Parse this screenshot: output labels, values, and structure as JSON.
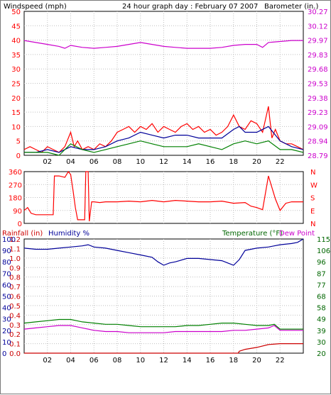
{
  "header": {
    "title": "24 hour graph day : February 07 2007",
    "left_label": "Windspeed (mph)",
    "right_label": "Barometer (in.)"
  },
  "colors": {
    "wind": "#ff0000",
    "gust": "#000099",
    "avg": "#008000",
    "baro": "#cc00cc",
    "grid": "#c0c0c0",
    "frame": "#000000",
    "humidity": "#000099",
    "rain": "#cc0000",
    "temp": "#008000",
    "dew": "#cc00cc",
    "temp_axis": "#006600"
  },
  "chart_data": [
    {
      "type": "line",
      "name": "wind-barometer",
      "x_ticks": [
        "02",
        "04",
        "06",
        "08",
        "10",
        "12",
        "14",
        "16",
        "18",
        "20",
        "22"
      ],
      "xlim_hours": [
        0,
        24
      ],
      "y_left": {
        "label": "Windspeed (mph)",
        "ticks": [
          "50",
          "45",
          "40",
          "35",
          "30",
          "25",
          "20",
          "15",
          "10",
          "5",
          "0"
        ],
        "ylim": [
          0,
          50
        ]
      },
      "y_right": {
        "label": "Barometer (in.)",
        "ticks": [
          "30.27",
          "30.12",
          "29.97",
          "29.83",
          "29.68",
          "29.53",
          "29.38",
          "29.23",
          "29.09",
          "28.94",
          "28.79"
        ],
        "ylim": [
          28.79,
          30.27
        ]
      },
      "series": [
        {
          "key": "baro",
          "axis": "right",
          "x": [
            0,
            1,
            2,
            3,
            3.5,
            4,
            5,
            6,
            7,
            8,
            9,
            10,
            11,
            12,
            13,
            14,
            15,
            16,
            17,
            18,
            19,
            20,
            20.5,
            21,
            22,
            23,
            24
          ],
          "y": [
            29.97,
            29.95,
            29.93,
            29.91,
            29.89,
            29.92,
            29.9,
            29.89,
            29.9,
            29.91,
            29.93,
            29.95,
            29.93,
            29.91,
            29.9,
            29.89,
            29.89,
            29.89,
            29.9,
            29.92,
            29.93,
            29.93,
            29.9,
            29.95,
            29.96,
            29.97,
            29.97
          ]
        },
        {
          "key": "wind",
          "axis": "left",
          "x": [
            0,
            0.5,
            1,
            1.5,
            2,
            2.5,
            3,
            3.5,
            4,
            4.3,
            4.6,
            5,
            5.5,
            6,
            6.5,
            7,
            7.5,
            8,
            8.5,
            9,
            9.5,
            10,
            10.5,
            11,
            11.5,
            12,
            12.5,
            13,
            13.5,
            14,
            14.5,
            15,
            15.5,
            16,
            16.5,
            17,
            17.5,
            18,
            18.5,
            19,
            19.5,
            20,
            20.5,
            21,
            21.3,
            21.6,
            22,
            22.5,
            23,
            23.5,
            24
          ],
          "y": [
            2,
            3,
            2,
            1,
            3,
            2,
            1,
            3,
            8,
            3,
            5,
            2,
            3,
            2,
            4,
            3,
            5,
            8,
            9,
            10,
            8,
            10,
            9,
            11,
            8,
            10,
            9,
            8,
            10,
            11,
            9,
            10,
            8,
            9,
            7,
            8,
            10,
            14,
            10,
            9,
            12,
            11,
            8,
            17,
            6,
            9,
            5,
            4,
            4,
            3,
            2
          ]
        },
        {
          "key": "gust",
          "axis": "left",
          "x": [
            0,
            1,
            2,
            3,
            4,
            5,
            6,
            7,
            8,
            9,
            10,
            11,
            12,
            13,
            14,
            15,
            16,
            17,
            18,
            18.5,
            19,
            20,
            21,
            22,
            23,
            24
          ],
          "y": [
            1,
            1,
            2,
            1,
            3,
            2,
            2,
            3,
            5,
            6,
            8,
            7,
            6,
            7,
            7,
            6,
            6,
            6,
            9,
            10,
            8,
            8,
            10,
            5,
            3,
            2
          ]
        },
        {
          "key": "avg",
          "axis": "left",
          "x": [
            0,
            1,
            2,
            3,
            4,
            5,
            6,
            7,
            8,
            9,
            10,
            11,
            12,
            13,
            14,
            15,
            16,
            17,
            18,
            19,
            20,
            21,
            22,
            23,
            24
          ],
          "y": [
            1,
            1,
            1,
            0,
            4,
            2,
            1,
            2,
            3,
            4,
            5,
            4,
            3,
            3,
            3,
            4,
            3,
            2,
            4,
            5,
            4,
            5,
            2,
            2,
            1
          ]
        }
      ]
    },
    {
      "type": "line",
      "name": "wind-direction",
      "xlim_hours": [
        0,
        24
      ],
      "y_left": {
        "ticks": [
          "360",
          "270",
          "180",
          "90",
          "0"
        ],
        "ylim": [
          0,
          360
        ]
      },
      "y_right": {
        "ticks": [
          "N",
          "W",
          "S",
          "E",
          "N"
        ]
      },
      "series": [
        {
          "key": "wind",
          "axis": "left",
          "x": [
            0,
            0.3,
            0.6,
            1,
            1.5,
            2,
            2.5,
            2.6,
            3,
            3.5,
            3.8,
            4,
            4.2,
            4.4,
            4.6,
            4.8,
            5,
            5.2,
            5.3,
            5.5,
            5.6,
            5.8,
            6,
            6.5,
            7,
            8,
            9,
            10,
            11,
            12,
            13,
            14,
            15,
            16,
            17,
            18,
            19,
            19.5,
            20,
            20.5,
            21,
            21.3,
            21.6,
            22,
            22.5,
            23,
            24
          ],
          "y": [
            90,
            110,
            70,
            60,
            60,
            60,
            60,
            330,
            330,
            320,
            360,
            340,
            230,
            110,
            25,
            25,
            25,
            25,
            360,
            360,
            15,
            150,
            150,
            145,
            150,
            150,
            155,
            150,
            160,
            150,
            160,
            155,
            150,
            150,
            155,
            140,
            145,
            120,
            110,
            95,
            330,
            250,
            170,
            90,
            140,
            150,
            150
          ]
        }
      ]
    },
    {
      "type": "line",
      "name": "rain-humidity-temperature",
      "x_ticks": [
        "02",
        "04",
        "06",
        "08",
        "10",
        "12",
        "14",
        "16",
        "18",
        "20",
        "22"
      ],
      "xlim_hours": [
        0,
        24
      ],
      "labels": {
        "rain": "Rainfall (in)",
        "humidity": "Humidity %",
        "temperature": "Temperature (°F)",
        "dew": "Dew Point"
      },
      "y_rain": {
        "ticks": [
          "1.2",
          "1.1",
          "1.0",
          "0.9",
          "0.8",
          "0.7",
          "0.6",
          "0.5",
          "0.4",
          "0.3",
          "0.2",
          "0.1",
          "0.0"
        ],
        "ylim": [
          0,
          1.2
        ]
      },
      "y_humidity": {
        "ticks": [
          "100",
          "90",
          "80",
          "70",
          "60",
          "50",
          "40",
          "30",
          "20",
          "10",
          "0"
        ],
        "ylim": [
          0,
          100
        ]
      },
      "y_temp": {
        "ticks": [
          "115",
          "106",
          "96",
          "87",
          "77",
          "68",
          "58",
          "49",
          "39",
          "30",
          "20"
        ],
        "ylim": [
          20,
          115
        ]
      },
      "series": [
        {
          "key": "humidity",
          "axis": "humidity",
          "x": [
            0,
            1,
            2,
            3,
            4,
            5,
            5.5,
            6,
            7,
            8,
            9,
            10,
            11,
            11.5,
            12,
            12.5,
            13,
            14,
            15,
            16,
            17,
            17.5,
            18,
            18.5,
            19,
            20,
            21,
            22,
            23,
            23.5,
            24
          ],
          "y": [
            92,
            91,
            91,
            92,
            93,
            94,
            95,
            93,
            92,
            90,
            88,
            86,
            84,
            80,
            77,
            79,
            80,
            83,
            83,
            82,
            81,
            79,
            77,
            82,
            90,
            92,
            93,
            95,
            96,
            97,
            100
          ]
        },
        {
          "key": "temp",
          "axis": "temp",
          "x": [
            0,
            1,
            2,
            3,
            4,
            4.5,
            5,
            6,
            7,
            8,
            9,
            10,
            11,
            12,
            13,
            14,
            15,
            16,
            17,
            18,
            19,
            20,
            21,
            21.5,
            22,
            23,
            24
          ],
          "y": [
            45,
            46,
            47,
            48,
            48,
            47,
            46,
            45,
            44,
            44,
            43,
            42,
            42,
            42,
            42,
            43,
            43,
            44,
            45,
            45,
            44,
            43,
            43,
            44,
            40,
            40,
            40
          ]
        },
        {
          "key": "dew",
          "axis": "temp",
          "x": [
            0,
            1,
            2,
            3,
            4,
            4.5,
            5,
            6,
            7,
            8,
            9,
            10,
            11,
            12,
            13,
            14,
            15,
            16,
            17,
            18,
            19,
            20,
            21,
            21.5,
            22,
            23,
            24
          ],
          "y": [
            40,
            41,
            42,
            43,
            43,
            42,
            41,
            39,
            38,
            38,
            37,
            37,
            37,
            37,
            38,
            38,
            38,
            38,
            38,
            39,
            39,
            40,
            41,
            43,
            39,
            39,
            39
          ]
        },
        {
          "key": "rain",
          "axis": "rain",
          "x": [
            0,
            18.4,
            18.5,
            19,
            20,
            21,
            22,
            23,
            24
          ],
          "y": [
            0,
            0,
            0.02,
            0.04,
            0.06,
            0.09,
            0.1,
            0.1,
            0.1
          ]
        }
      ]
    }
  ]
}
